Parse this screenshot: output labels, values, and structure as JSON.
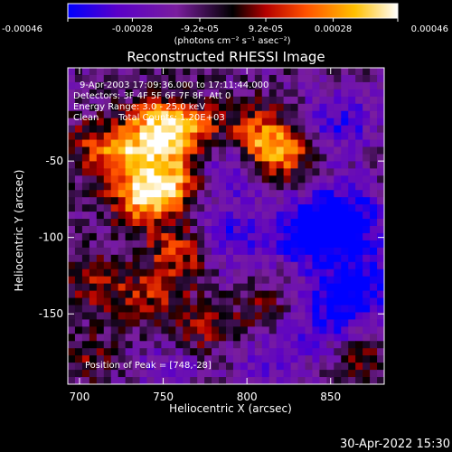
{
  "colorbar": {
    "tick_labels": [
      "-0.00046",
      "-0.00028",
      "-9.2e-05",
      "9.2e-05",
      "0.00028",
      "0.00046"
    ],
    "tick_values": [
      -0.00046,
      -0.00028,
      -9.2e-05,
      9.2e-05,
      0.00028,
      0.00046
    ],
    "range": [
      -0.00046,
      0.00046
    ],
    "unit_label": "(photons cm⁻² s⁻¹ asec⁻²)",
    "colors": [
      "#0000ff",
      "#5a00c8",
      "#7a1e9e",
      "#000000",
      "#b40000",
      "#ff5000",
      "#ffc000",
      "#ffffff"
    ]
  },
  "chart_data": {
    "type": "heatmap",
    "title": "Reconstructed RHESSI Image",
    "xlabel": "Heliocentric X (arcsec)",
    "ylabel": "Heliocentric Y (arcsec)",
    "xlim": [
      693,
      882
    ],
    "ylim": [
      -196,
      11
    ],
    "x_ticks": [
      700,
      750,
      800,
      850
    ],
    "y_ticks": [
      -50,
      -100,
      -150
    ],
    "value_range": [
      -0.00046,
      0.00046
    ],
    "color_scale": "blue-purple-black-red-yellow-white",
    "sources": [
      {
        "x": 748,
        "y": -28,
        "value": 0.00046
      },
      {
        "x": 738,
        "y": -75,
        "value": 0.00042
      },
      {
        "x": 757,
        "y": -62,
        "value": 0.00037
      },
      {
        "x": 733,
        "y": -48,
        "value": 0.00032
      },
      {
        "x": 760,
        "y": -110,
        "value": 0.00028
      },
      {
        "x": 768,
        "y": -30,
        "value": 0.00025
      },
      {
        "x": 820,
        "y": -45,
        "value": 0.0004
      },
      {
        "x": 804,
        "y": -32,
        "value": 0.00028
      },
      {
        "x": 712,
        "y": -40,
        "value": 0.00022
      },
      {
        "x": 742,
        "y": -140,
        "value": 0.0002
      },
      {
        "x": 772,
        "y": -160,
        "value": 0.00018
      },
      {
        "x": 712,
        "y": -130,
        "value": 0.00018
      },
      {
        "x": 810,
        "y": -150,
        "value": 0.00016
      },
      {
        "x": 870,
        "y": -180,
        "value": 0.00015
      },
      {
        "x": 705,
        "y": -178,
        "value": 0.00012
      },
      {
        "x": 838,
        "y": -96,
        "value": -0.0004
      },
      {
        "x": 860,
        "y": -88,
        "value": -0.00035
      },
      {
        "x": 788,
        "y": -55,
        "value": -0.00022
      },
      {
        "x": 855,
        "y": -25,
        "value": -0.00025
      },
      {
        "x": 850,
        "y": -150,
        "value": -0.00028
      },
      {
        "x": 815,
        "y": -178,
        "value": -0.0002
      },
      {
        "x": 870,
        "y": -130,
        "value": -0.0003
      },
      {
        "x": 790,
        "y": -100,
        "value": -0.00024
      },
      {
        "x": 752,
        "y": -188,
        "value": -0.00016
      }
    ],
    "peak": {
      "x": 748,
      "y": -28
    }
  },
  "annotations": {
    "time_range": "9-Apr-2003 17:09:36.000 to 17:11:44.000",
    "detectors": "Detectors: 3F 4F 5F 6F 7F 8F, Att 0",
    "energy_range": "Energy Range: 3.0 - 25.0 keV",
    "method": "Clean",
    "total_counts": "Total Counts: 1.20E+03",
    "peak_position": "Position of Peak = [748,-28]"
  },
  "footer": {
    "timestamp": "30-Apr-2022 15:30"
  }
}
